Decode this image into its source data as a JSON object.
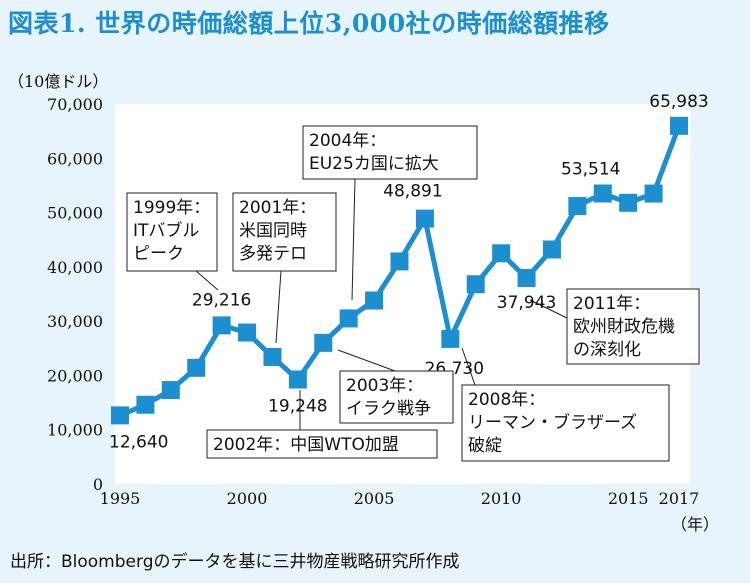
{
  "title": "図表1. 世界の時価総額上位3,000社の時価総額推移",
  "source": "出所：Bloombergのデータを基に三井物産戦略研究所作成",
  "colors": {
    "accent": "#1d8fd0",
    "background": "#e8f4fb",
    "plot_bg": "#ffffff"
  },
  "chart_data": {
    "type": "line",
    "title": "図表1. 世界の時価総額上位3,000社の時価総額推移",
    "ylabel": "（10億ドル）",
    "xlabel": "（年）",
    "x": [
      1995,
      1996,
      1997,
      1998,
      1999,
      2000,
      2001,
      2002,
      2003,
      2004,
      2005,
      2006,
      2007,
      2008,
      2009,
      2010,
      2011,
      2012,
      2013,
      2014,
      2015,
      2016,
      2017
    ],
    "series": [
      {
        "values": [
          12640,
          14600,
          17300,
          21400,
          29216,
          27900,
          23400,
          19248,
          26000,
          30500,
          33800,
          41000,
          48891,
          26730,
          36800,
          42500,
          37943,
          43200,
          51200,
          53514,
          51800,
          53500,
          65983
        ]
      }
    ],
    "ylim": [
      0,
      70000
    ],
    "xlim": [
      1995,
      2017
    ],
    "yticks": [
      "0",
      "10,000",
      "20,000",
      "30,000",
      "40,000",
      "50,000",
      "60,000",
      "70,000"
    ],
    "xticks": [
      "1995",
      "2000",
      "2005",
      "2010",
      "2015",
      "2017"
    ],
    "data_labels": [
      {
        "year": 1995,
        "text": "12,640"
      },
      {
        "year": 1999,
        "text": "29,216"
      },
      {
        "year": 2002,
        "text": "19,248"
      },
      {
        "year": 2007,
        "text": "48,891"
      },
      {
        "year": 2008,
        "text": "26,730"
      },
      {
        "year": 2011,
        "text": "37,943"
      },
      {
        "year": 2014,
        "text": "53,514"
      },
      {
        "year": 2017,
        "text": "65,983"
      }
    ],
    "annotations": [
      {
        "lines": [
          "1999年：",
          "ITバブル",
          "ピーク"
        ]
      },
      {
        "lines": [
          "2001年：",
          "米国同時",
          "多発テロ"
        ]
      },
      {
        "lines": [
          "2004年：",
          "EU25カ国に拡大"
        ]
      },
      {
        "lines": [
          "2002年：中国WTO加盟"
        ]
      },
      {
        "lines": [
          "2003年：",
          "イラク戦争"
        ]
      },
      {
        "lines": [
          "2008年：",
          "リーマン・ブラザーズ",
          "破綻"
        ]
      },
      {
        "lines": [
          "2011年：",
          "欧州財政危機",
          "の深刻化"
        ]
      }
    ],
    "grid": false,
    "legend": "none"
  }
}
